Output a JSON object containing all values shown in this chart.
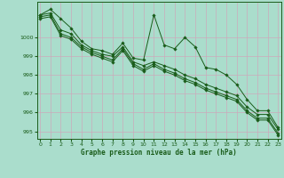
{
  "title": "Graphe pression niveau de la mer (hPa)",
  "bg_color": "#aaddcc",
  "grid_color": "#ccaabb",
  "line_color": "#1a5c1a",
  "x_ticks": [
    0,
    1,
    2,
    3,
    4,
    5,
    6,
    7,
    8,
    9,
    10,
    11,
    12,
    13,
    14,
    15,
    16,
    17,
    18,
    19,
    20,
    21,
    22,
    23
  ],
  "y_ticks": [
    995,
    996,
    997,
    998,
    999,
    1000
  ],
  "ylim": [
    994.6,
    1001.9
  ],
  "xlim": [
    -0.3,
    23.3
  ],
  "series": [
    [
      1001.2,
      1001.5,
      1001.0,
      1000.5,
      999.8,
      999.4,
      999.3,
      999.1,
      999.7,
      998.9,
      998.8,
      1001.2,
      999.6,
      999.4,
      1000.0,
      999.5,
      998.4,
      998.3,
      998.0,
      997.5,
      996.7,
      996.1,
      996.1,
      995.2
    ],
    [
      1001.2,
      1001.3,
      1000.4,
      1000.2,
      999.6,
      999.3,
      999.1,
      999.0,
      999.5,
      998.7,
      998.5,
      998.7,
      998.5,
      998.3,
      998.0,
      997.8,
      997.5,
      997.3,
      997.1,
      996.9,
      996.3,
      995.9,
      995.9,
      995.1
    ],
    [
      1001.1,
      1001.2,
      1000.2,
      1000.0,
      999.5,
      999.2,
      999.0,
      998.8,
      999.4,
      998.6,
      998.3,
      998.6,
      998.3,
      998.1,
      997.8,
      997.6,
      997.3,
      997.1,
      996.9,
      996.7,
      996.1,
      995.7,
      995.7,
      994.9
    ],
    [
      1001.0,
      1001.1,
      1000.1,
      999.9,
      999.4,
      999.1,
      998.9,
      998.7,
      999.3,
      998.5,
      998.2,
      998.5,
      998.2,
      998.0,
      997.7,
      997.5,
      997.2,
      997.0,
      996.8,
      996.6,
      996.0,
      995.6,
      995.6,
      994.8
    ]
  ]
}
